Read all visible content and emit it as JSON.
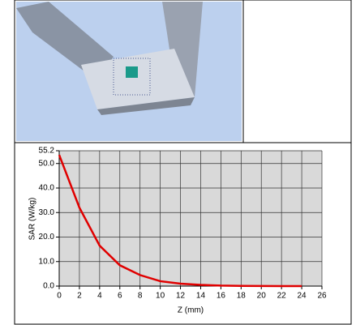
{
  "chart_data": {
    "type": "line",
    "x_label": "Z (mm)",
    "y_label": "SAR (W/kg)",
    "x": [
      0,
      2,
      4,
      6,
      8,
      10,
      12,
      14,
      16,
      18,
      20,
      22,
      24
    ],
    "series": [
      {
        "color": "#e00000",
        "values": [
          53.5,
          32,
          16.5,
          8.5,
          4.5,
          2,
          1,
          0.5,
          0.2,
          0.1,
          0.05,
          0.02,
          0.01
        ]
      }
    ],
    "xlim": [
      0,
      26
    ],
    "xticks": [
      0,
      2,
      4,
      6,
      8,
      10,
      12,
      14,
      16,
      18,
      20,
      22,
      24,
      26
    ],
    "ylim": [
      0,
      55.2
    ],
    "yticks": [
      {
        "value": 0,
        "label": "0.0"
      },
      {
        "value": 10,
        "label": "10.0"
      },
      {
        "value": 20,
        "label": "20.0"
      },
      {
        "value": 30,
        "label": "30.0"
      },
      {
        "value": 40,
        "label": "40.0"
      },
      {
        "value": 50,
        "label": "50.0"
      },
      55.2
    ],
    "grid": true
  }
}
